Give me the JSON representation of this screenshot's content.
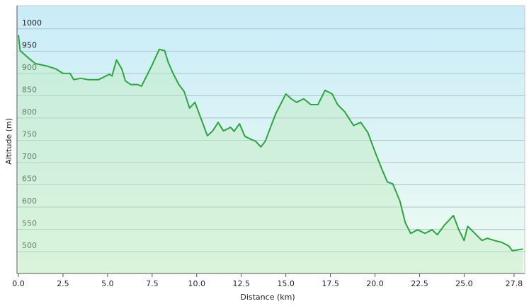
{
  "chart_data": {
    "type": "area-line",
    "x_label": "Distance  (km)",
    "y_label": "Altitude (m)",
    "x": [
      0,
      0.1,
      0.55,
      0.95,
      1.55,
      2.1,
      2.5,
      2.9,
      3.1,
      3.5,
      3.9,
      4.5,
      4.7,
      5.1,
      5.25,
      5.5,
      5.8,
      6.0,
      6.3,
      6.7,
      6.9,
      7.1,
      7.5,
      7.9,
      8.2,
      8.4,
      8.7,
      9.0,
      9.3,
      9.6,
      9.9,
      10.2,
      10.6,
      10.9,
      11.2,
      11.5,
      11.9,
      12.1,
      12.4,
      12.7,
      13.1,
      13.3,
      13.6,
      13.85,
      14.1,
      14.45,
      14.8,
      15.0,
      15.3,
      15.6,
      16.0,
      16.4,
      16.8,
      17.2,
      17.6,
      17.9,
      18.3,
      18.8,
      19.2,
      19.6,
      20.0,
      20.4,
      20.7,
      21.0,
      21.4,
      21.7,
      22.0,
      22.4,
      22.8,
      23.2,
      23.5,
      23.9,
      24.4,
      24.7,
      25.0,
      25.2,
      25.6,
      26.0,
      26.3,
      26.7,
      27.1,
      27.5,
      27.7,
      28.3
    ],
    "values": [
      986,
      951,
      935,
      922,
      917,
      910,
      900,
      900,
      886,
      889,
      886,
      886,
      890,
      898,
      894,
      930,
      910,
      883,
      875,
      875,
      871,
      887,
      919,
      954,
      951,
      925,
      898,
      875,
      859,
      822,
      835,
      803,
      760,
      771,
      790,
      771,
      779,
      770,
      787,
      759,
      751,
      748,
      735,
      748,
      775,
      811,
      838,
      854,
      843,
      835,
      843,
      830,
      830,
      862,
      854,
      830,
      814,
      783,
      790,
      767,
      724,
      684,
      656,
      652,
      613,
      565,
      541,
      549,
      541,
      549,
      538,
      560,
      581,
      549,
      525,
      557,
      541,
      525,
      530,
      525,
      521,
      513,
      502,
      506
    ],
    "color": "#2aa63c",
    "xlim": [
      -0.08,
      28.4
    ],
    "ylim": [
      451,
      1052
    ],
    "xticks": [
      {
        "value": 0,
        "label": "0.0"
      },
      2.5,
      {
        "value": 5,
        "label": "5.0"
      },
      7.5,
      {
        "value": 10,
        "label": "10.0"
      },
      12.5,
      {
        "value": 15,
        "label": "15.0"
      },
      17.5,
      {
        "value": 20,
        "label": "20.0"
      },
      22.5,
      {
        "value": 25,
        "label": "25.0"
      },
      27.8
    ],
    "yticks": [
      500,
      550,
      600,
      650,
      700,
      750,
      800,
      850,
      900,
      950,
      1000
    ],
    "grid": true
  }
}
